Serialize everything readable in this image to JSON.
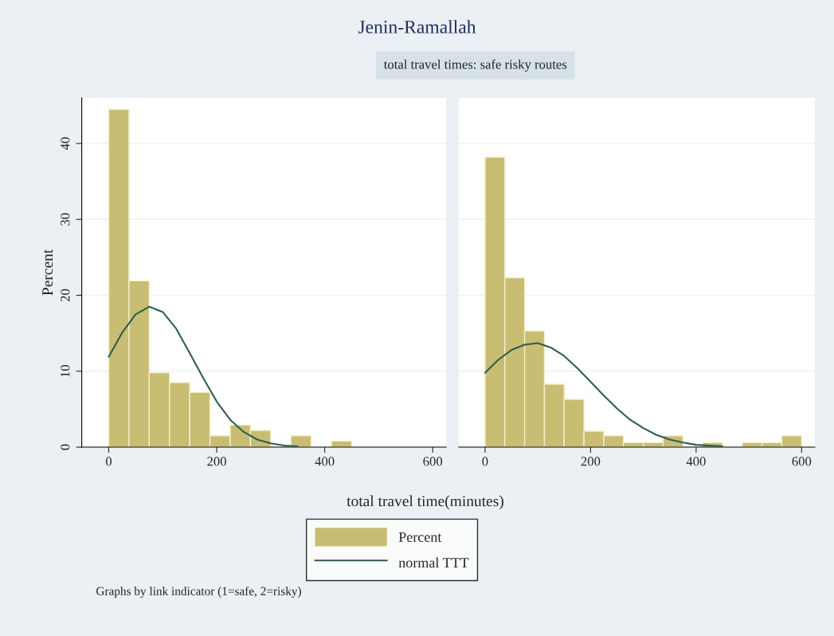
{
  "chart_data": [
    {
      "type": "histogram",
      "title": "Jenin-Ramallah",
      "subtitle": "total travel times: safe risky routes",
      "xlabel": "total travel time(minutes)",
      "ylabel": "Percent",
      "xlim": [
        -50,
        625
      ],
      "xticks": [
        0,
        200,
        400,
        600
      ],
      "ylim": [
        0,
        46
      ],
      "yticks": [
        0,
        10,
        20,
        30,
        40
      ],
      "grid": "y",
      "legend": "bottom",
      "annotations": [
        "Graphs by link indicator (1=safe, 2=risky)"
      ],
      "series": [
        {
          "name": "Percent",
          "color": "#c8bd72",
          "bins": [
            0,
            37.5,
            75,
            112.5,
            150,
            187.5,
            225,
            262.5,
            300,
            337.5,
            375,
            412.5,
            450
          ],
          "values": [
            44.5,
            21.9,
            9.8,
            8.5,
            7.2,
            1.5,
            2.9,
            2.2,
            0,
            1.5,
            0,
            0.8
          ]
        },
        {
          "name": "normal TTT",
          "type": "line",
          "color": "#2f5d50",
          "x": [
            0,
            25,
            50,
            75,
            100,
            125,
            150,
            175,
            200,
            225,
            250,
            275,
            300,
            325,
            350
          ],
          "values": [
            11.9,
            15.1,
            17.5,
            18.5,
            17.8,
            15.6,
            12.4,
            9.1,
            6.0,
            3.6,
            2.0,
            1.0,
            0.5,
            0.2,
            0.1
          ]
        }
      ]
    },
    {
      "type": "histogram",
      "xlim": [
        -50,
        625
      ],
      "xticks": [
        0,
        200,
        400,
        600
      ],
      "ylim": [
        0,
        46
      ],
      "yticks": [
        0,
        10,
        20,
        30,
        40
      ],
      "grid": "y",
      "tick_labels": "x",
      "series": [
        {
          "color": "#c8bd72",
          "bins": [
            0,
            37.5,
            75,
            112.5,
            150,
            187.5,
            225,
            262.5,
            300,
            337.5,
            375,
            412.5,
            450,
            487.5,
            525,
            562.5,
            600
          ],
          "values": [
            38.2,
            22.3,
            15.3,
            8.3,
            6.3,
            2.1,
            1.5,
            0.6,
            0.6,
            1.5,
            0,
            0.6,
            0,
            0.6,
            0.6,
            1.5
          ]
        },
        {
          "type": "line",
          "color": "#2f5d50",
          "x": [
            0,
            25,
            50,
            75,
            100,
            125,
            150,
            175,
            200,
            225,
            250,
            275,
            300,
            325,
            350,
            375,
            400,
            425,
            450
          ],
          "values": [
            9.8,
            11.5,
            12.8,
            13.5,
            13.7,
            13.1,
            12.0,
            10.4,
            8.6,
            6.8,
            5.1,
            3.6,
            2.5,
            1.6,
            1.0,
            0.6,
            0.3,
            0.2,
            0.1
          ]
        }
      ]
    }
  ]
}
